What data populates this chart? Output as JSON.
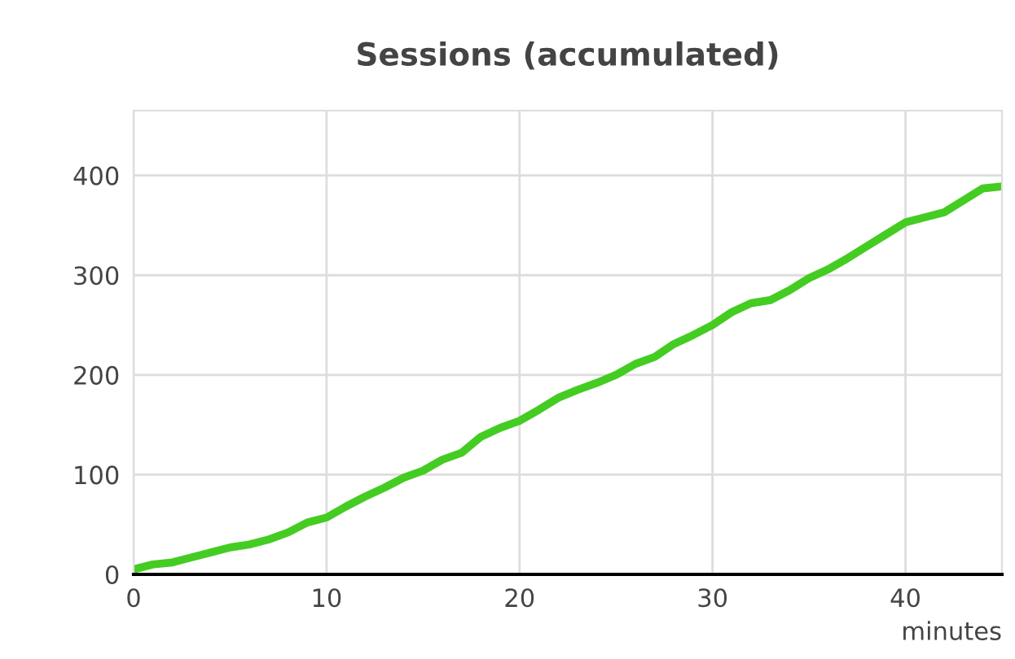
{
  "chart_data": {
    "type": "line",
    "title": "Sessions (accumulated)",
    "xlabel": "minutes",
    "x": [
      0,
      1,
      2,
      3,
      4,
      5,
      6,
      7,
      8,
      9,
      10,
      11,
      12,
      13,
      14,
      15,
      16,
      17,
      18,
      19,
      20,
      21,
      22,
      23,
      24,
      25,
      26,
      27,
      28,
      29,
      30,
      31,
      32,
      33,
      34,
      35,
      36,
      37,
      38,
      39,
      40,
      41,
      42,
      43,
      44,
      45
    ],
    "series": [
      {
        "color": "#44cc22",
        "values": [
          5,
          10,
          12,
          17,
          22,
          27,
          30,
          35,
          42,
          52,
          57,
          68,
          78,
          87,
          97,
          104,
          115,
          122,
          138,
          147,
          154,
          165,
          177,
          185,
          192,
          200,
          211,
          218,
          231,
          240,
          250,
          263,
          272,
          275,
          285,
          297,
          306,
          317,
          329,
          341,
          353,
          358,
          363,
          375,
          387,
          389
        ]
      }
    ],
    "xlim": [
      0,
      45
    ],
    "ylim": [
      0,
      465
    ],
    "xticks": [
      0,
      10,
      20,
      30,
      40
    ],
    "yticks": [
      0,
      100,
      200,
      300,
      400
    ],
    "grid": true,
    "legend": false,
    "marker": "none",
    "line_style": "solid"
  }
}
